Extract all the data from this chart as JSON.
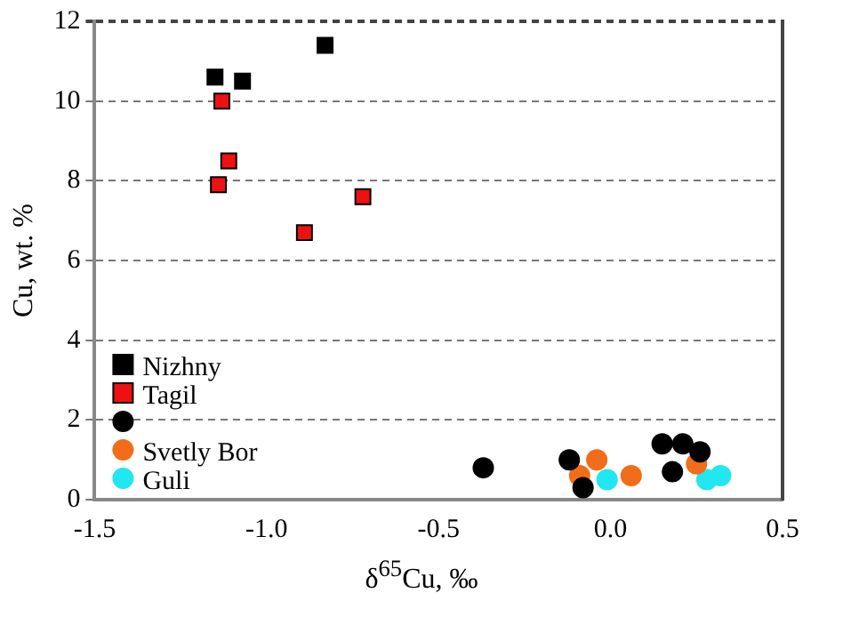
{
  "chart_data": {
    "type": "scatter",
    "xlabel": "δ$^{65}$Cu, ‰",
    "ylabel": "Cu, wt. %",
    "xlim": [
      -1.5,
      0.5
    ],
    "xticks": [
      {
        "value": -1.5,
        "label": "-1.5"
      },
      {
        "value": -1,
        "label": "-1.0"
      },
      {
        "value": -0.5,
        "label": "-0.5"
      },
      {
        "value": 0,
        "label": "0.0"
      },
      {
        "value": 0.5,
        "label": "0.5"
      }
    ],
    "ylim": [
      0,
      12
    ],
    "yticks": [
      0,
      2,
      4,
      6,
      8,
      10,
      12
    ],
    "grid": "y",
    "legend": "bottom left",
    "series": [
      {
        "name": "Nizhny",
        "color": "#000000",
        "marker": "square",
        "x": [
          -1.15,
          -1.07,
          -0.83
        ],
        "values": [
          10.6,
          10.5,
          11.4
        ]
      },
      {
        "name": "Tagil",
        "color": "#ee1111",
        "marker": "square",
        "x": [
          -1.13,
          -1.11,
          -1.14,
          -0.89,
          -0.72
        ],
        "values": [
          10,
          8.5,
          7.9,
          6.7,
          7.6
        ]
      },
      {
        "name": null,
        "color": "#000000",
        "marker": "circle",
        "x": [
          -0.37,
          -0.12,
          -0.08,
          0.15,
          0.21,
          0.26,
          0.18
        ],
        "values": [
          0.8,
          1,
          0.3,
          1.4,
          1.4,
          1.2,
          0.7
        ]
      },
      {
        "name": "Svetly Bor",
        "color": "#f26c1a",
        "marker": "circle",
        "x": [
          -0.04,
          -0.09,
          0.06,
          0.25
        ],
        "values": [
          1,
          0.6,
          0.6,
          0.9
        ]
      },
      {
        "name": "Guli",
        "color": "#22e6f0",
        "marker": "circle",
        "x": [
          -0.01,
          0.28,
          0.32
        ],
        "values": [
          0.5,
          0.5,
          0.6
        ]
      }
    ]
  }
}
